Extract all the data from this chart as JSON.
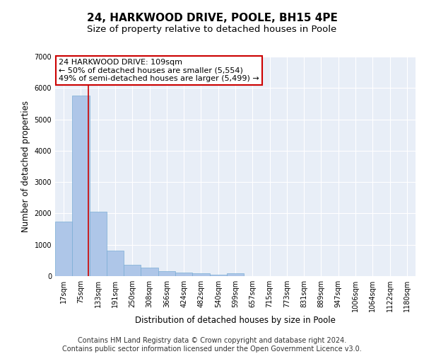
{
  "title": "24, HARKWOOD DRIVE, POOLE, BH15 4PE",
  "subtitle": "Size of property relative to detached houses in Poole",
  "xlabel": "Distribution of detached houses by size in Poole",
  "ylabel": "Number of detached properties",
  "footer_line1": "Contains HM Land Registry data © Crown copyright and database right 2024.",
  "footer_line2": "Contains public sector information licensed under the Open Government Licence v3.0.",
  "bin_labels": [
    "17sqm",
    "75sqm",
    "133sqm",
    "191sqm",
    "250sqm",
    "308sqm",
    "366sqm",
    "424sqm",
    "482sqm",
    "540sqm",
    "599sqm",
    "657sqm",
    "715sqm",
    "773sqm",
    "831sqm",
    "889sqm",
    "947sqm",
    "1006sqm",
    "1064sqm",
    "1122sqm",
    "1180sqm"
  ],
  "bar_values": [
    1750,
    5750,
    2050,
    820,
    370,
    270,
    150,
    110,
    90,
    50,
    80,
    0,
    0,
    0,
    0,
    0,
    0,
    0,
    0,
    0,
    0
  ],
  "bar_color": "#aec6e8",
  "bar_edge_color": "#7aadd4",
  "background_color": "#e8eef7",
  "grid_color": "#ffffff",
  "annotation_line1": "24 HARKWOOD DRIVE: 109sqm",
  "annotation_line2": "← 50% of detached houses are smaller (5,554)",
  "annotation_line3": "49% of semi-detached houses are larger (5,499) →",
  "annotation_box_color": "#cc0000",
  "vline_x": 1.45,
  "vline_color": "#cc0000",
  "ylim": [
    0,
    7000
  ],
  "yticks": [
    0,
    1000,
    2000,
    3000,
    4000,
    5000,
    6000,
    7000
  ],
  "title_fontsize": 11,
  "subtitle_fontsize": 9.5,
  "ylabel_fontsize": 8.5,
  "xlabel_fontsize": 8.5,
  "tick_fontsize": 7,
  "annotation_fontsize": 8,
  "footer_fontsize": 7
}
